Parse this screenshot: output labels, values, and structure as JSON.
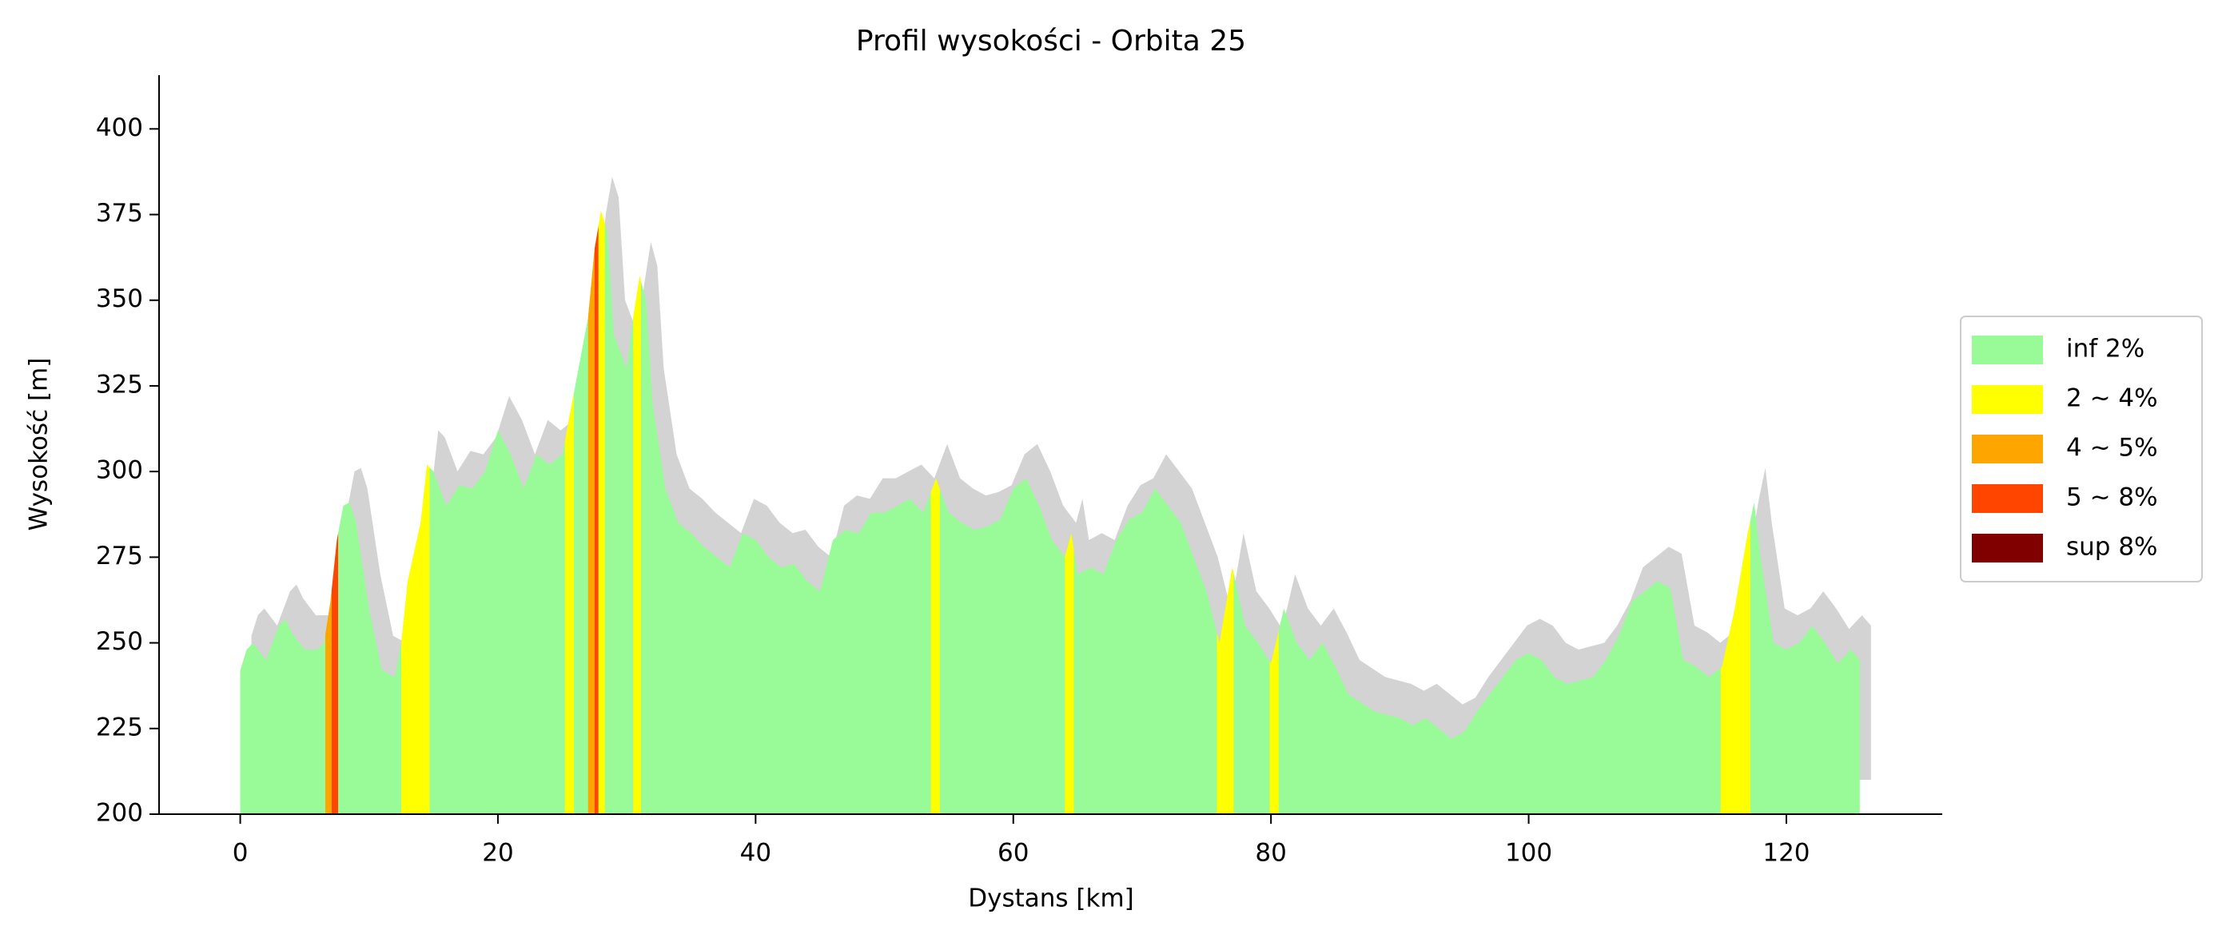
{
  "chart_data": {
    "type": "area",
    "title": "Profil wysokości - Orbita 25",
    "x_label": "Dystans [km]",
    "y_label": "Wysokość [m]",
    "xlim": [
      -6.3,
      132.1
    ],
    "xticks": [
      0,
      20,
      40,
      60,
      80,
      100,
      120
    ],
    "ylim": [
      200,
      415.7
    ],
    "yticks": [
      200,
      225,
      250,
      275,
      300,
      325,
      350,
      375,
      400
    ],
    "shadow_color": "#d3d3d3",
    "legend": "right",
    "profile": {
      "x": [
        0,
        0.5,
        1,
        2,
        3,
        3.5,
        4,
        5,
        6,
        6.5,
        7,
        7.5,
        8,
        8.5,
        9,
        10,
        11,
        12,
        12.5,
        13,
        14,
        14.5,
        15,
        16,
        17,
        18,
        19,
        20,
        21,
        22,
        23,
        24,
        25,
        25.5,
        26,
        27,
        27.5,
        28,
        28.5,
        29,
        30,
        30.5,
        31,
        31.5,
        32,
        33,
        34,
        35,
        36,
        37,
        38,
        39,
        40,
        41,
        42,
        43,
        44,
        45,
        46,
        47,
        48,
        49,
        50,
        51,
        52,
        53,
        54,
        55,
        56,
        57,
        58,
        59,
        60,
        61,
        62,
        63,
        64,
        64.5,
        65,
        66,
        67,
        68,
        69,
        70,
        71,
        72,
        73,
        74,
        75,
        76,
        77,
        78,
        79,
        80,
        80.5,
        81,
        82,
        83,
        84,
        85,
        86,
        88,
        90,
        91,
        92,
        94,
        95,
        96,
        98,
        99,
        100,
        101,
        102,
        103,
        105,
        106,
        107,
        108,
        109,
        110,
        111,
        112,
        113,
        114,
        115,
        116,
        117,
        117.5,
        118,
        119,
        120,
        121,
        122,
        123,
        124,
        125,
        125.7
      ],
      "values": [
        242,
        248,
        250,
        245,
        255,
        257,
        253,
        248,
        248,
        250,
        262,
        280,
        290,
        291,
        285,
        260,
        242,
        240,
        250,
        268,
        285,
        302,
        300,
        290,
        296,
        295,
        300,
        312,
        305,
        295,
        305,
        302,
        305,
        315,
        325,
        345,
        365,
        376,
        370,
        340,
        330,
        345,
        357,
        350,
        320,
        295,
        285,
        282,
        278,
        275,
        272,
        282,
        280,
        275,
        272,
        273,
        268,
        265,
        280,
        283,
        282,
        288,
        288,
        290,
        292,
        288,
        298,
        288,
        285,
        283,
        284,
        286,
        295,
        298,
        290,
        280,
        275,
        282,
        270,
        272,
        270,
        280,
        286,
        288,
        295,
        290,
        285,
        275,
        265,
        250,
        272,
        255,
        250,
        244,
        252,
        260,
        250,
        245,
        250,
        243,
        235,
        230,
        228,
        226,
        228,
        222,
        224,
        230,
        240,
        245,
        247,
        245,
        240,
        238,
        240,
        245,
        252,
        262,
        265,
        268,
        266,
        245,
        243,
        240,
        243,
        260,
        282,
        291,
        275,
        250,
        248,
        250,
        255,
        250,
        244,
        248,
        245
      ]
    },
    "series": [
      {
        "name": "inf 2%",
        "color": "#98fb98",
        "ranges": []
      },
      {
        "name": "2 ~ 4%",
        "color": "#ffff00",
        "ranges": [
          [
            12.5,
            14.7
          ],
          [
            25.2,
            25.9
          ],
          [
            27.8,
            28.3
          ],
          [
            30.5,
            31.1
          ],
          [
            53.6,
            54.3
          ],
          [
            64,
            64.7
          ],
          [
            75.8,
            77.1
          ],
          [
            79.9,
            80.6
          ],
          [
            114.9,
            117.2
          ]
        ]
      },
      {
        "name": "4 ~ 5%",
        "color": "#ffa500",
        "ranges": [
          [
            6.6,
            7.1
          ],
          [
            27.0,
            27.5
          ]
        ]
      },
      {
        "name": "5 ~ 8%",
        "color": "#ff4500",
        "ranges": [
          [
            7.1,
            7.6
          ],
          [
            27.5,
            27.8
          ]
        ]
      },
      {
        "name": "sup 8%",
        "color": "#800000",
        "ranges": []
      }
    ]
  }
}
